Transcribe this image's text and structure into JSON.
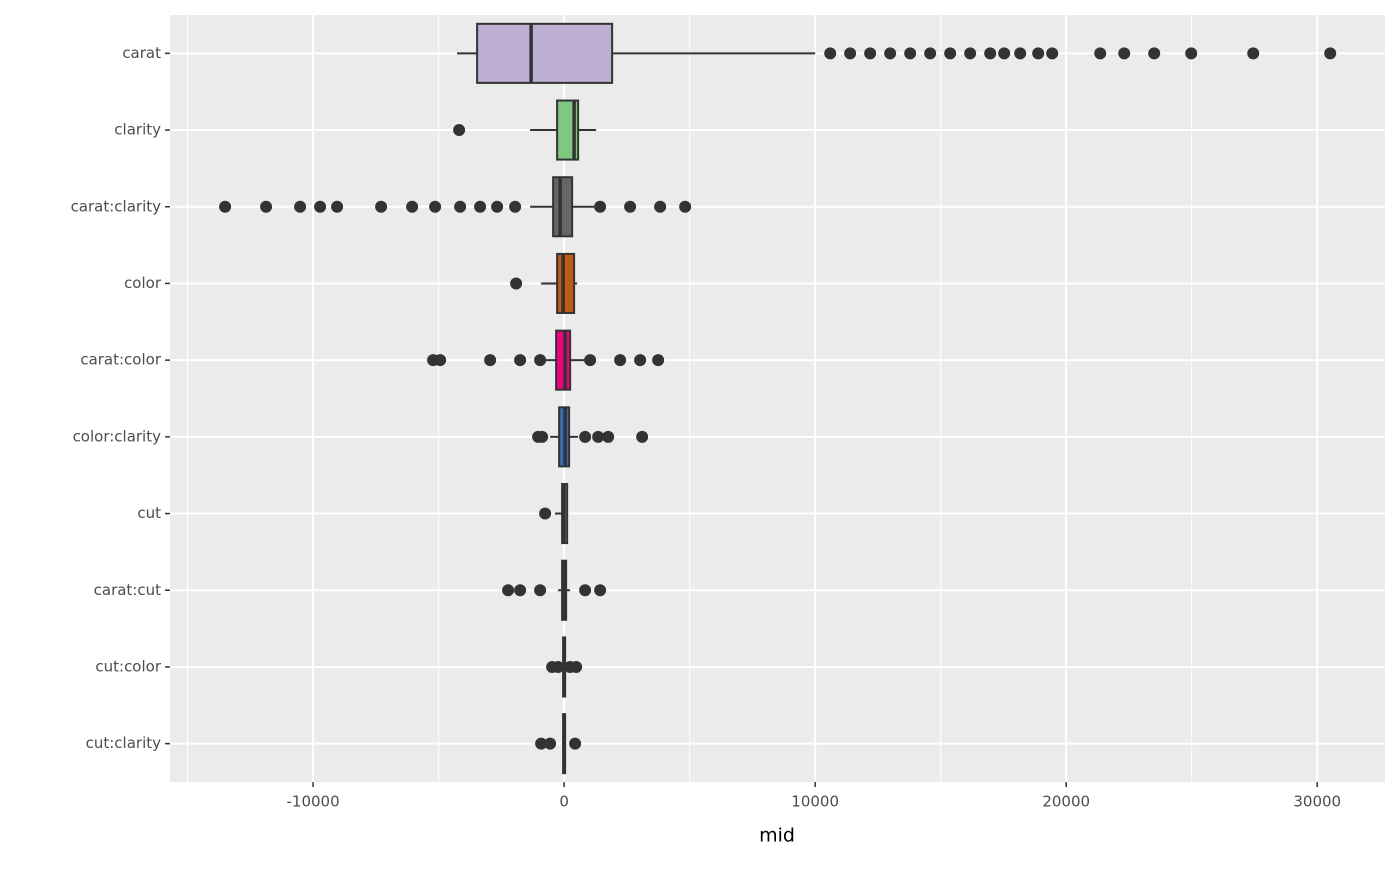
{
  "chart_data": {
    "type": "boxplot",
    "x_label": "mid",
    "categories": [
      "carat",
      "clarity",
      "carat:clarity",
      "color",
      "carat:color",
      "color:clarity",
      "cut",
      "carat:cut",
      "cut:color",
      "cut:clarity"
    ],
    "boxes": [
      {
        "color": "#beaed4",
        "whislo": -4263,
        "q1": -3466,
        "median": -1315,
        "q3": 1912,
        "whishi": 10000,
        "outliers": [
          10600,
          11394,
          12191,
          12988,
          13785,
          14582,
          15379,
          16175,
          16972,
          17530,
          18167,
          18884,
          19442,
          21355,
          22311,
          23506,
          24980,
          27450,
          30518
        ]
      },
      {
        "color": "#7fc97f",
        "whislo": -1355,
        "q1": -279,
        "median": 398,
        "q3": 558,
        "whishi": 1275,
        "outliers": [
          -4183
        ]
      },
      {
        "color": "#666666",
        "whislo": -1355,
        "q1": -438,
        "median": -159,
        "q3": 319,
        "whishi": 1195,
        "outliers": [
          -13506,
          -11873,
          -10518,
          -9721,
          -9044,
          -7291,
          -6056,
          -5139,
          -4143,
          -3347,
          -2669,
          -1952,
          1434,
          2629,
          3825,
          4821
        ]
      },
      {
        "color": "#bf5b17",
        "whislo": -916,
        "q1": -279,
        "median": -40,
        "q3": 398,
        "whishi": 518,
        "outliers": [
          -1912
        ]
      },
      {
        "color": "#f0027f",
        "whislo": -837,
        "q1": -319,
        "median": 40,
        "q3": 239,
        "whishi": 837,
        "outliers": [
          -5219,
          -4940,
          -2948,
          -1753,
          -956,
          1036,
          2231,
          3028,
          3745
        ]
      },
      {
        "color": "#386cb0",
        "whislo": -558,
        "q1": -199,
        "median": 40,
        "q3": 199,
        "whishi": 558,
        "outliers": [
          -1036,
          -876,
          837,
          1355,
          1753,
          3108
        ]
      },
      {
        "color": "#fdc086",
        "whislo": -359,
        "q1": -80,
        "median": 0,
        "q3": 120,
        "whishi": 159,
        "outliers": [
          -757
        ]
      },
      {
        "color": "#ffff99",
        "whislo": -239,
        "q1": -80,
        "median": 0,
        "q3": 80,
        "whishi": 239,
        "outliers": [
          -2231,
          -1753,
          -956,
          837,
          1434
        ]
      },
      {
        "color": "#7fc97f",
        "whislo": -80,
        "q1": -40,
        "median": 0,
        "q3": 40,
        "whishi": 80,
        "outliers": [
          -478,
          -239,
          239,
          478
        ]
      },
      {
        "color": "#beaed4",
        "whislo": -80,
        "q1": -40,
        "median": 0,
        "q3": 40,
        "whishi": 80,
        "outliers": [
          -916,
          -558,
          438
        ]
      }
    ],
    "xlim": [
      -15700,
      32700
    ],
    "xticks": [
      -10000,
      0,
      10000,
      20000,
      30000
    ],
    "x_minor_ticks": [
      -15000,
      -5000,
      5000,
      15000,
      25000
    ],
    "grid": true
  }
}
